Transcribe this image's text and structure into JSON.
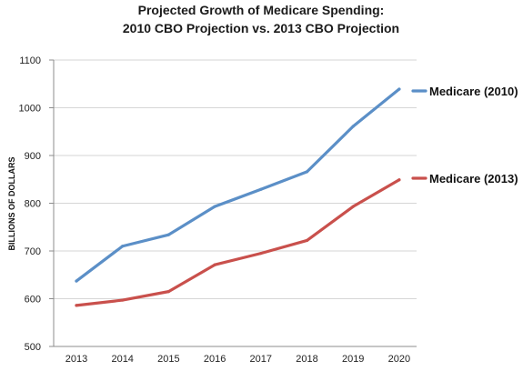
{
  "chart_data": {
    "type": "line",
    "title": "Projected Growth of Medicare Spending:",
    "subtitle": "2010 CBO Projection vs. 2013 CBO Projection",
    "xlabel": "",
    "ylabel": "BILLIONS OF DOLLARS",
    "x": [
      "2013",
      "2014",
      "2015",
      "2016",
      "2017",
      "2018",
      "2019",
      "2020"
    ],
    "ylim": [
      500,
      1100
    ],
    "yticks": [
      500,
      600,
      700,
      800,
      900,
      1000,
      1100
    ],
    "grid": "horizontal",
    "legend_placement": "right",
    "series": [
      {
        "name": "Medicare (2010)",
        "color": "#5b8fc7",
        "values": [
          637,
          710,
          734,
          793,
          829,
          866,
          961,
          1039
        ]
      },
      {
        "name": "Medicare (2013)",
        "color": "#c9504c",
        "values": [
          586,
          597,
          615,
          671,
          695,
          722,
          793,
          849
        ]
      }
    ]
  },
  "colors": {
    "grid": "#d6d6d6",
    "axis": "#8c8c8c"
  }
}
